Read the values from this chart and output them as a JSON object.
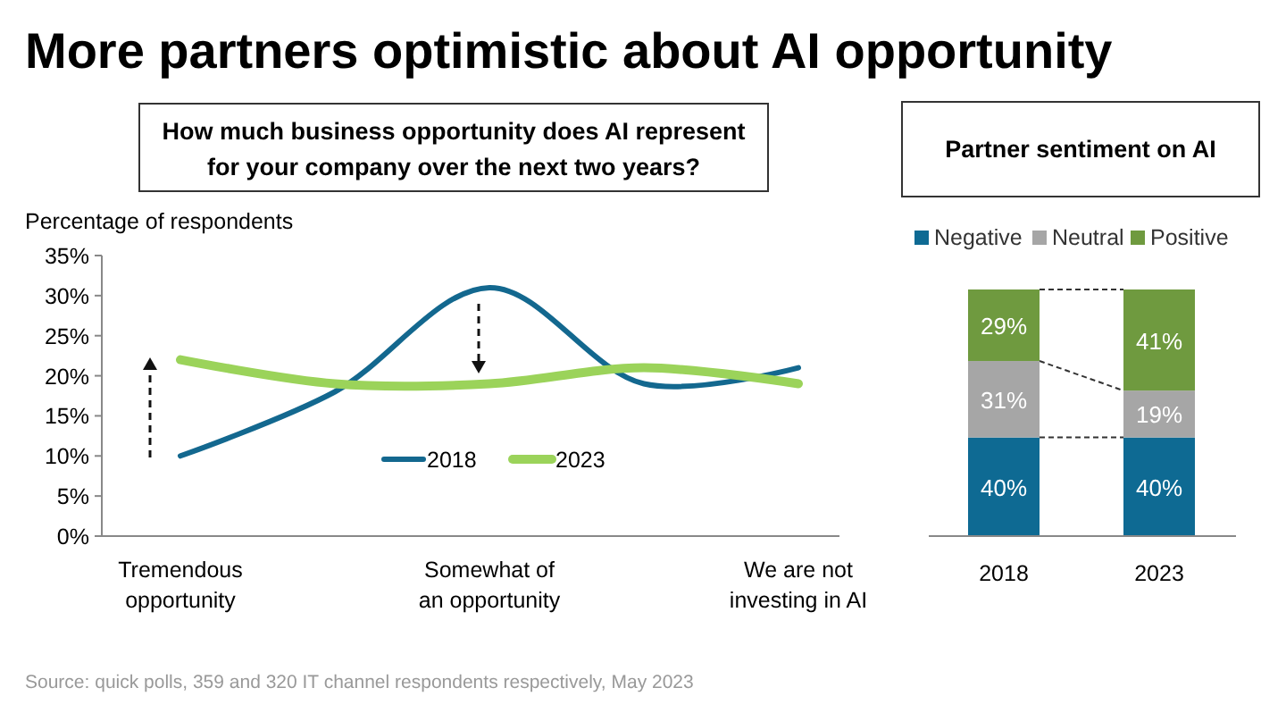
{
  "chart_data": [
    {
      "type": "line",
      "title": "More partners optimistic about AI opportunity",
      "subtitle": "How much business opportunity does AI represent for your company over the next two years?",
      "ylabel": "Percentage of respondents",
      "categories": [
        "Tremendous opportunity",
        null,
        "Somewhat of an opportunity",
        null,
        "We are not investing in AI"
      ],
      "series": [
        {
          "name": "2018",
          "color": "#13688f",
          "values": [
            10,
            18,
            31,
            19,
            21
          ]
        },
        {
          "name": "2023",
          "color": "#9bd35a",
          "values": [
            22,
            19,
            19,
            21,
            19
          ]
        }
      ],
      "ylim": [
        0,
        35
      ],
      "yticks": [
        {
          "value": 0,
          "label": "0%"
        },
        {
          "value": 5,
          "label": "5%"
        },
        {
          "value": 10,
          "label": "10%"
        },
        {
          "value": 15,
          "label": "15%"
        },
        {
          "value": 20,
          "label": "20%"
        },
        {
          "value": 25,
          "label": "25%"
        },
        {
          "value": 30,
          "label": "30%"
        },
        {
          "value": 35,
          "label": "35%"
        }
      ],
      "legend": "center",
      "grid": false,
      "marker": "none",
      "annotations": [
        "Source: quick polls, 359 and 320 IT channel respondents respectively, May 2023"
      ]
    },
    {
      "type": "bar",
      "title": "Partner sentiment on AI",
      "stacked": true,
      "categories": [
        "2018",
        "2023"
      ],
      "series": [
        {
          "name": "Negative",
          "color": "#0e6a93",
          "values": [
            40,
            40
          ],
          "value_labels": [
            "40%",
            "40%"
          ]
        },
        {
          "name": "Neutral",
          "color": "#a6a6a6",
          "values": [
            31,
            19
          ],
          "value_labels": [
            "31%",
            "19%"
          ]
        },
        {
          "name": "Positive",
          "color": "#6f9a3f",
          "values": [
            29,
            41
          ],
          "value_labels": [
            "29%",
            "41%"
          ]
        }
      ],
      "legend": "top"
    }
  ]
}
